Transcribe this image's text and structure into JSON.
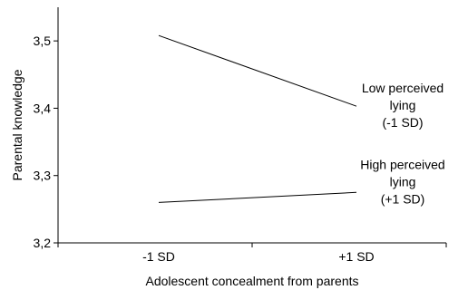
{
  "chart_data": {
    "type": "line",
    "categories": [
      "-1 SD",
      "+1 SD"
    ],
    "xlabel": "Adolescent concealment from parents",
    "ylabel": "Parental knowledge",
    "ylim": [
      3.2,
      3.55
    ],
    "yticks": [
      3.2,
      3.3,
      3.4,
      3.5
    ],
    "ytick_labels": [
      "3,2",
      "3,3",
      "3,4",
      "3,5"
    ],
    "grid": false,
    "legend": "inline-right",
    "series": [
      {
        "name_lines": [
          "Low perceived",
          "lying",
          "(-1 SD)"
        ],
        "values": [
          3.508,
          3.403
        ]
      },
      {
        "name_lines": [
          "High perceived",
          "lying",
          "(+1 SD)"
        ],
        "values": [
          3.26,
          3.275
        ]
      }
    ]
  },
  "colors": {
    "line": "#000000",
    "axis": "#000000",
    "background": "#ffffff"
  }
}
